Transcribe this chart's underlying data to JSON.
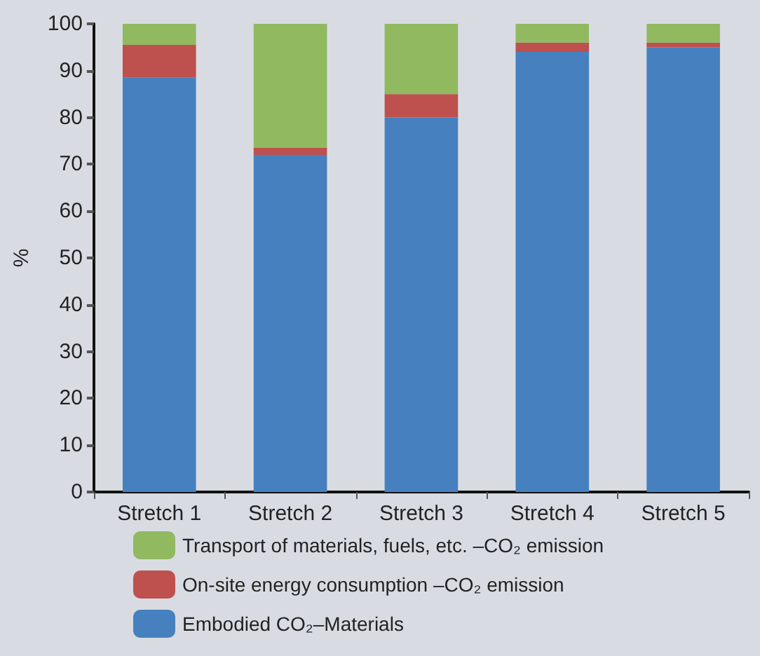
{
  "chart_data": {
    "type": "bar",
    "stacked": true,
    "ylabel": "%",
    "categories": [
      "Stretch 1",
      "Stretch 2",
      "Stretch 3",
      "Stretch 4",
      "Stretch 5"
    ],
    "series": [
      {
        "name": "Embodied CO₂–Materials",
        "color": "#4680bf",
        "values": [
          88.5,
          72,
          80,
          94,
          95
        ]
      },
      {
        "name": "On-site energy consumption –CO₂ emission",
        "color": "#be504d",
        "values": [
          7,
          1.5,
          5,
          2,
          1
        ]
      },
      {
        "name": "Transport of materials, fuels, etc. –CO₂ emission",
        "color": "#91b960",
        "values": [
          4.5,
          26.5,
          15,
          4,
          4
        ]
      }
    ],
    "ylim": [
      0,
      100
    ],
    "yticks": [
      0,
      10,
      20,
      30,
      40,
      50,
      60,
      70,
      80,
      90,
      100
    ],
    "legend": "bottom"
  }
}
